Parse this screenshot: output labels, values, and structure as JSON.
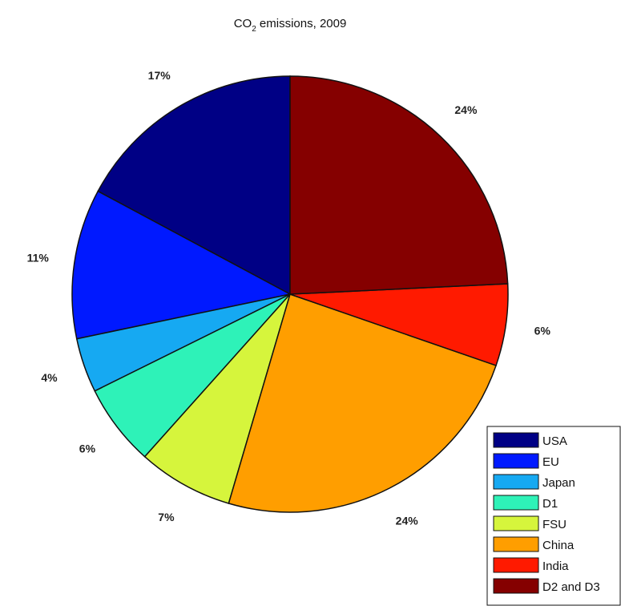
{
  "chart_data": {
    "type": "pie",
    "title_main": "CO",
    "title_sub": "2",
    "title_rest": " emissions, 2009",
    "start_angle_deg": 0,
    "direction": "counterclockwise",
    "slices": [
      {
        "label": "USA",
        "value": 17,
        "pct_label": "17%",
        "color": "#000085"
      },
      {
        "label": "EU",
        "value": 11,
        "pct_label": "11%",
        "color": "#0019ff"
      },
      {
        "label": "Japan",
        "value": 4,
        "pct_label": "4%",
        "color": "#16a9f2"
      },
      {
        "label": "D1",
        "value": 6,
        "pct_label": "6%",
        "color": "#2ef2b8"
      },
      {
        "label": "FSU",
        "value": 7,
        "pct_label": "7%",
        "color": "#d6f53c"
      },
      {
        "label": "China",
        "value": 24,
        "pct_label": "24%",
        "color": "#ff9e00"
      },
      {
        "label": "India",
        "value": 6,
        "pct_label": "6%",
        "color": "#ff1a00"
      },
      {
        "label": "D2 and D3",
        "value": 24,
        "pct_label": "24%",
        "color": "#850000"
      }
    ],
    "legend_position": "bottom-right"
  }
}
